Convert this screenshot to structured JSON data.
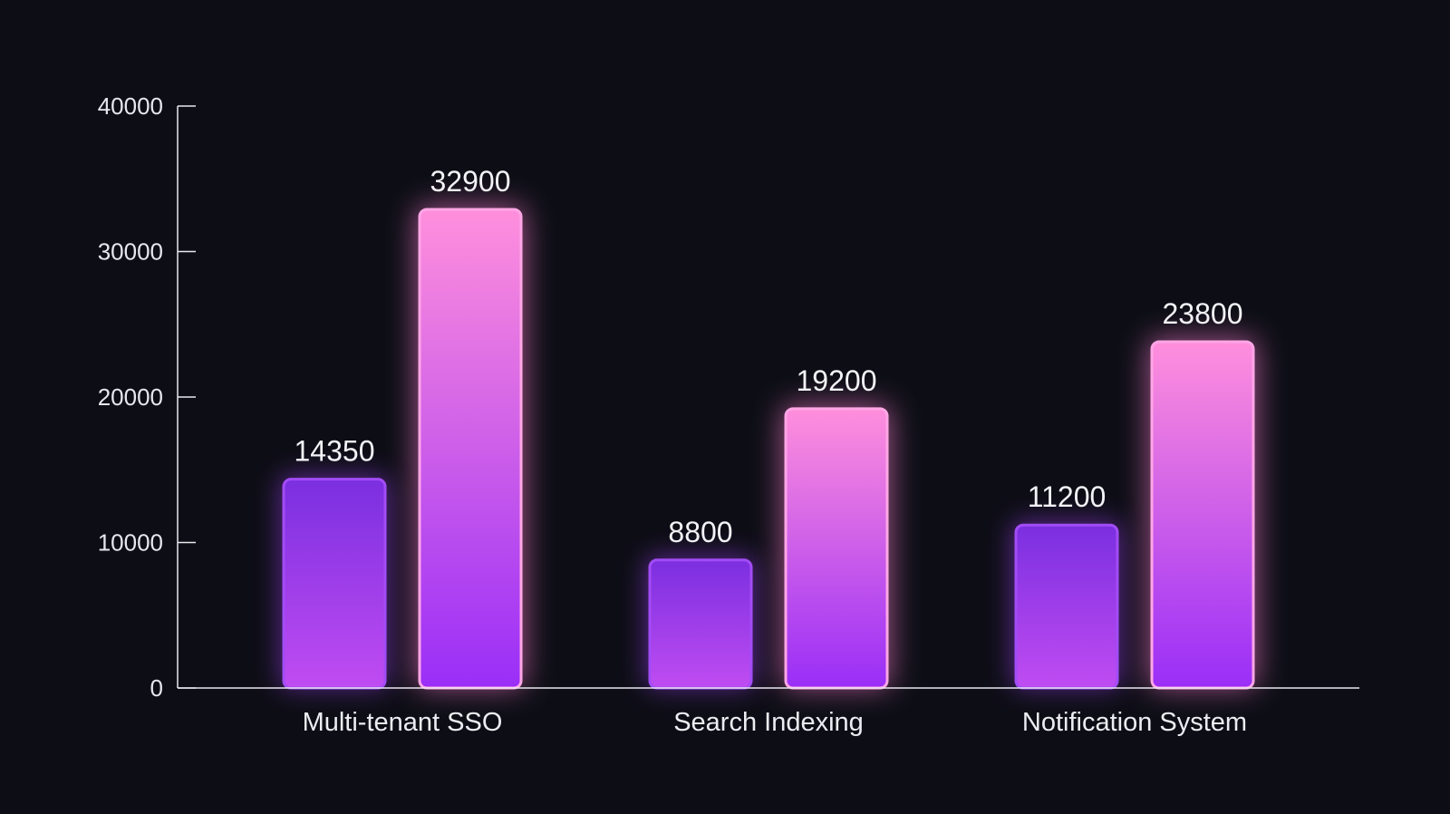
{
  "chart_data": {
    "type": "bar",
    "title": "",
    "xlabel": "",
    "ylabel": "",
    "categories": [
      "Multi-tenant SSO",
      "Search Indexing",
      "Notification System"
    ],
    "series": [
      {
        "values": [
          14350,
          8800,
          11200
        ],
        "color_top": "#7b2fe0",
        "color_bottom": "#c04cf2"
      },
      {
        "values": [
          32900,
          19200,
          23800
        ],
        "color_top": "#ff8fdc",
        "color_bottom": "#9a2ef7"
      }
    ],
    "ylim": [
      0,
      40000
    ],
    "yticks": [
      0,
      10000,
      20000,
      30000,
      40000
    ],
    "grid": false,
    "legend": "none"
  }
}
